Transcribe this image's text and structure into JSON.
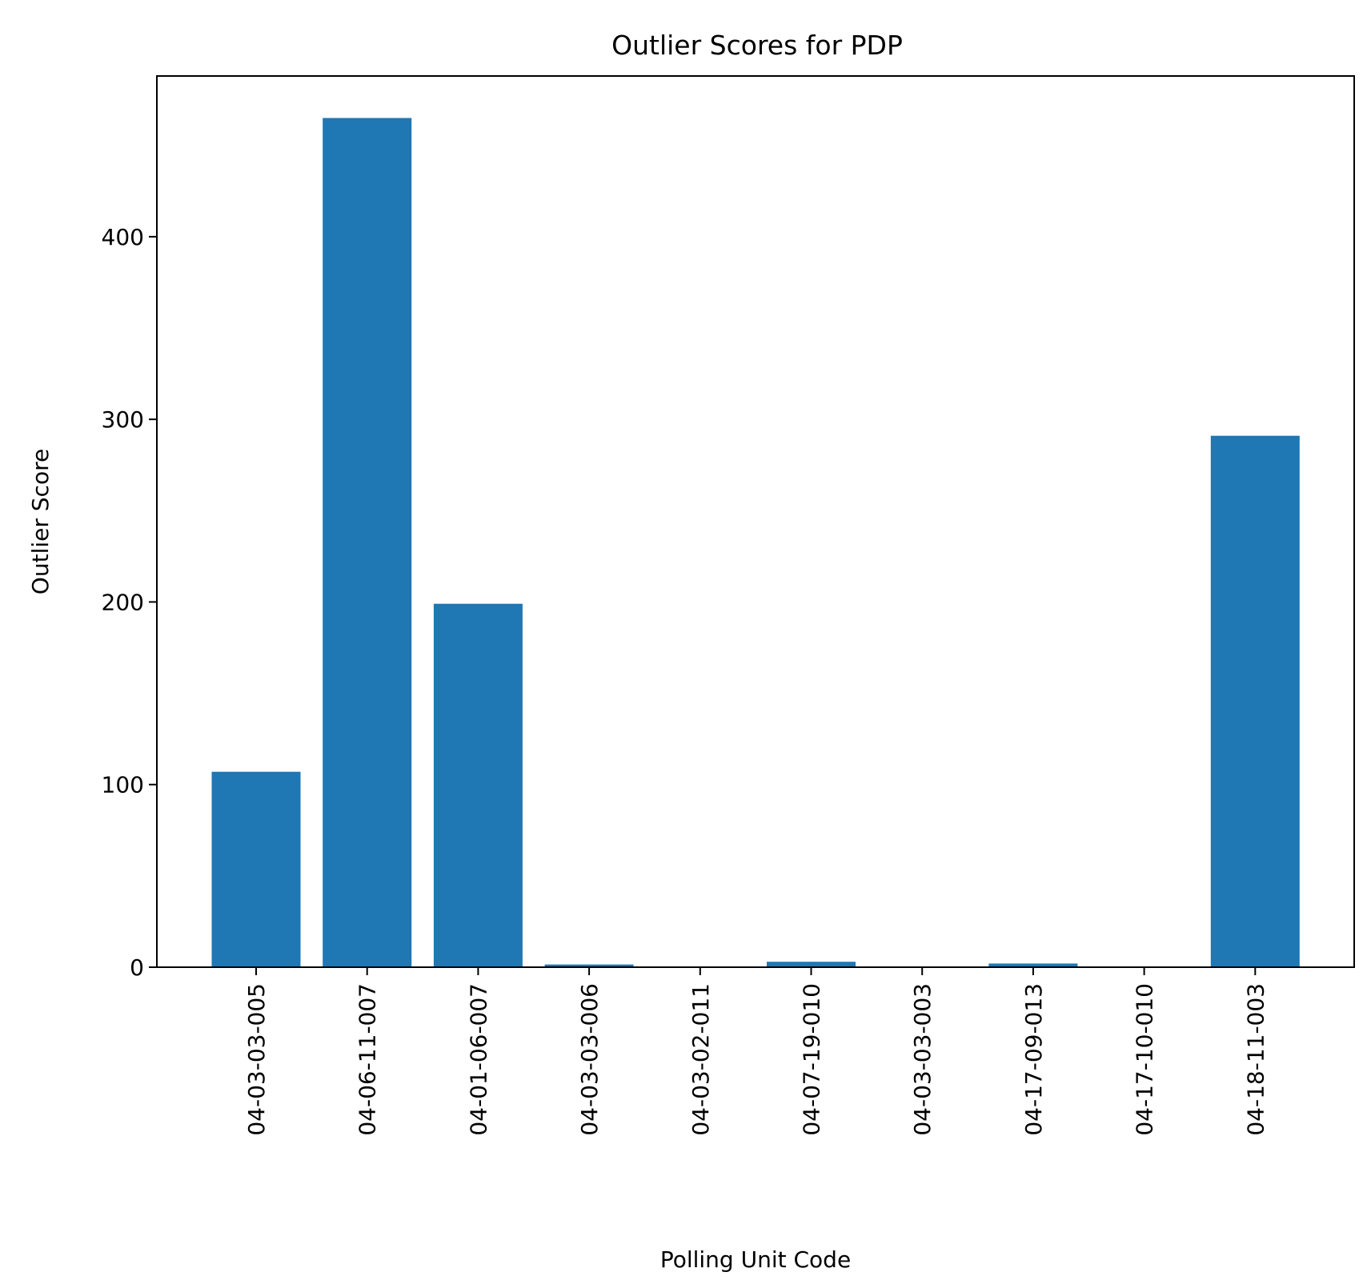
{
  "chart_data": {
    "type": "bar",
    "title": "Outlier Scores for PDP",
    "xlabel": "Polling Unit Code",
    "ylabel": "Outlier Score",
    "categories": [
      "04-03-03-005",
      "04-06-11-007",
      "04-01-06-007",
      "04-03-03-006",
      "04-03-02-011",
      "04-07-19-010",
      "04-03-03-003",
      "04-17-09-013",
      "04-17-10-010",
      "04-18-11-003"
    ],
    "values": [
      107,
      465,
      199,
      1.5,
      0,
      3,
      0,
      2,
      0,
      291
    ],
    "ylim": [
      0,
      488
    ],
    "yticks": [
      0,
      100,
      200,
      300,
      400
    ],
    "bar_color": "#1f77b4",
    "grid": false,
    "legend": "none"
  }
}
